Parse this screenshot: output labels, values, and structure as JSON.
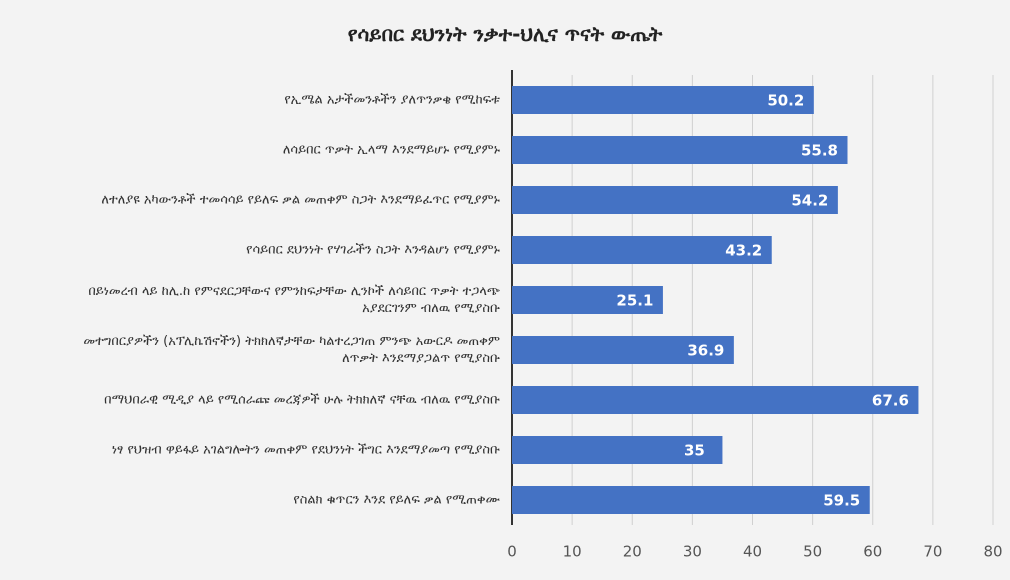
{
  "chart_data": {
    "type": "barh",
    "title": "የሳይበር ደህንነት ንቃተ-ህሊና ጥናት ውጤት",
    "categories": [
      "የኢሜል አታችመንቶችን ያለጥንቃቄ የሚከፍቱ",
      "ለሳይበር ጥቃት ኢላማ እንደማይሆኑ የሚያምኑ",
      "ለተለያዩ አካውንቶች ተመሳሳይ የይለፍ ቃል መጠቀም ስጋት እንደማይፈጥር የሚያምኑ",
      "የሳይበር ደህንነት የሃገራችን ስጋት እንዳልሆነ የሚያምኑ",
      "በይነመረብ ላይ ከሊ.ከ የምናደርጋቸውና የምንከፍታቸው ሊንኮች ለሳይበር ጥቃት ተጋላጭ አያደርገንም ብለዉ የሚያስቡ",
      "መተግበርያዎችን (አፕሊኬሽኖችን) ትክክለኛታቸው ካልተረጋገጠ ምንጭ አውርዶ መጠቀም ለጥቃት እንደማያጋልጥ የሚያስቡ",
      "በማህበራዊ ሚዲያ ላይ የሚሰራጩ መረጃዎች ሁሉ ትክክለኛ ናቸዉ ብለዉ የሚያስቡ",
      "ነፃ የህዝብ ዋይፋይ አገልግሎትን መጠቀም የደህንነት ችግር እንደማያመጣ የሚያስቡ",
      "የስልክ ቁጥርን እንደ የይለፍ ቃል የሚጠቀሙ"
    ],
    "values": [
      50.2,
      55.8,
      54.2,
      43.2,
      25.1,
      36.9,
      67.6,
      35,
      59.5
    ],
    "color": "#4472c4",
    "xlim": [
      0,
      80
    ],
    "xticks": [
      0,
      10,
      20,
      30,
      40,
      50,
      60,
      70,
      80
    ],
    "grid": true
  }
}
